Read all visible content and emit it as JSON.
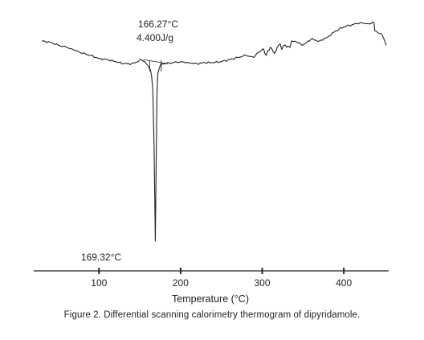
{
  "caption": "Figure 2. Differential scanning calorimetry thermogram of dipyridamole.",
  "chart_data": {
    "type": "line",
    "title": "",
    "xlabel": "Temperature (°C)",
    "ylabel": "",
    "xlim": [
      20,
      455
    ],
    "ylim": [
      -1.0,
      0.25
    ],
    "x_ticks": [
      100,
      200,
      300,
      400
    ],
    "y_axis_visible": false,
    "grid": false,
    "annotations": [
      {
        "text": "166.27°C",
        "x": 166.27,
        "y": 0.08
      },
      {
        "text": "4.400J/g",
        "x": 166.27,
        "y": 0.02
      },
      {
        "text": "169.32°C",
        "x": 169.32,
        "y": -0.95
      }
    ],
    "series": [
      {
        "name": "",
        "x": [
          30,
          40,
          50,
          60,
          70,
          80,
          90,
          100,
          110,
          120,
          130,
          140,
          148,
          152,
          156,
          160,
          163,
          164.5,
          166,
          167.5,
          169,
          170,
          171,
          172,
          174,
          176,
          180,
          190,
          200,
          210,
          220,
          230,
          240,
          250,
          260,
          270,
          280,
          290,
          300,
          305,
          310,
          315,
          320,
          330,
          340,
          350,
          360,
          370,
          380,
          390,
          400,
          410,
          420,
          430,
          437,
          438,
          442,
          447,
          452
        ],
        "y": [
          0.12,
          0.115,
          0.1,
          0.09,
          0.075,
          0.06,
          0.05,
          0.035,
          0.03,
          0.02,
          0.01,
          0.01,
          0.02,
          0.03,
          0.02,
          0.0,
          -0.02,
          -0.05,
          -0.12,
          -0.4,
          -0.855,
          -0.5,
          -0.15,
          -0.04,
          -0.01,
          0.01,
          0.01,
          0.015,
          0.02,
          0.015,
          0.01,
          0.015,
          0.015,
          0.02,
          0.03,
          0.04,
          0.05,
          0.04,
          0.08,
          0.05,
          0.09,
          0.06,
          0.1,
          0.09,
          0.12,
          0.1,
          0.13,
          0.12,
          0.14,
          0.17,
          0.19,
          0.2,
          0.21,
          0.205,
          0.21,
          0.17,
          0.16,
          0.15,
          0.1
        ]
      }
    ]
  }
}
